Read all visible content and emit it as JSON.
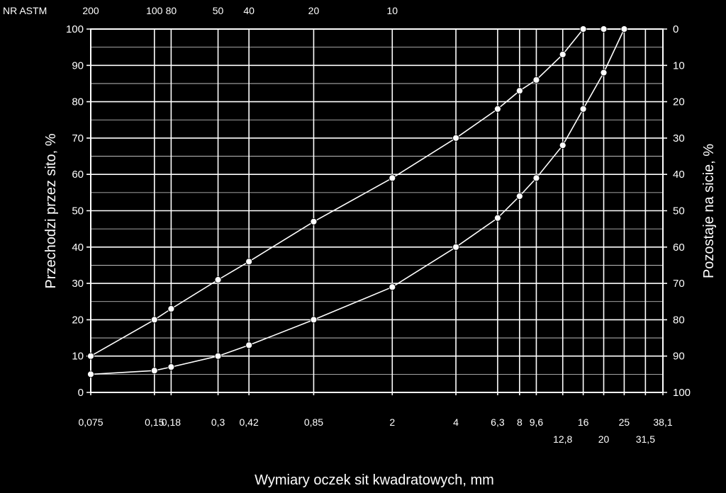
{
  "chart_data": {
    "type": "line",
    "xscale": "log",
    "xlabel": "Wymiary oczek sit kwadratowych, mm",
    "ylabel": "Przechodzi przez sito, %",
    "ylabel_right": "Pozostaje na sicie, %",
    "astm_label": "NR ASTM",
    "ylim": [
      0,
      100
    ],
    "xlim": [
      0.075,
      38.1
    ],
    "grid": true,
    "y_ticks": [
      0,
      10,
      20,
      30,
      40,
      50,
      60,
      70,
      80,
      90,
      100
    ],
    "y_ticks_right": [
      "100",
      "90",
      "80",
      "70",
      "60",
      "50",
      "40",
      "30",
      "20",
      "10",
      "0"
    ],
    "sieves": [
      {
        "value": 0.075,
        "label": "0,075",
        "row": 1
      },
      {
        "value": 0.15,
        "label": "0,15",
        "row": 1
      },
      {
        "value": 0.18,
        "label": "0,18",
        "row": 1
      },
      {
        "value": 0.3,
        "label": "0,3",
        "row": 1
      },
      {
        "value": 0.42,
        "label": "0,42",
        "row": 1
      },
      {
        "value": 0.85,
        "label": "0,85",
        "row": 1
      },
      {
        "value": 2,
        "label": "2",
        "row": 1
      },
      {
        "value": 4,
        "label": "4",
        "row": 1
      },
      {
        "value": 6.3,
        "label": "6,3",
        "row": 1
      },
      {
        "value": 8,
        "label": "8",
        "row": 1
      },
      {
        "value": 9.6,
        "label": "9,6",
        "row": 1
      },
      {
        "value": 12.8,
        "label": "12,8",
        "row": 2
      },
      {
        "value": 16,
        "label": "16",
        "row": 1
      },
      {
        "value": 20,
        "label": "20",
        "row": 2
      },
      {
        "value": 25,
        "label": "25",
        "row": 1
      },
      {
        "value": 31.5,
        "label": "31,5",
        "row": 2
      },
      {
        "value": 38.1,
        "label": "38,1",
        "row": 1
      }
    ],
    "astm": [
      {
        "value": 0.075,
        "label": "200"
      },
      {
        "value": 0.15,
        "label": "100"
      },
      {
        "value": 0.18,
        "label": "80"
      },
      {
        "value": 0.3,
        "label": "50"
      },
      {
        "value": 0.42,
        "label": "40"
      },
      {
        "value": 0.85,
        "label": "20"
      },
      {
        "value": 2,
        "label": "10"
      }
    ],
    "series": [
      {
        "x": [
          0.075,
          0.15,
          0.18,
          0.3,
          0.42,
          0.85,
          2,
          4,
          6.3,
          8,
          9.6,
          12.8,
          16,
          20
        ],
        "values": [
          10,
          20,
          23,
          31,
          36,
          47,
          59,
          70,
          78,
          83,
          86,
          93,
          100,
          100
        ]
      },
      {
        "x": [
          0.075,
          0.15,
          0.18,
          0.3,
          0.42,
          0.85,
          2,
          4,
          6.3,
          8,
          9.6,
          12.8,
          16,
          20,
          25
        ],
        "values": [
          5,
          6,
          7,
          10,
          13,
          20,
          29,
          40,
          48,
          54,
          59,
          68,
          78,
          88,
          100
        ]
      }
    ]
  }
}
